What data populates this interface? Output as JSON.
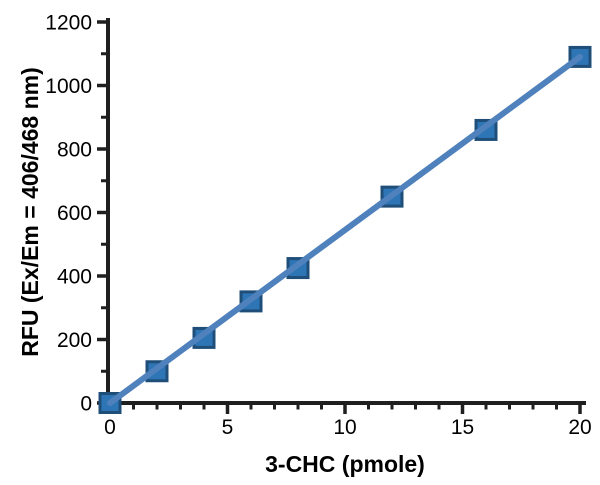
{
  "chart_data": {
    "type": "scatter",
    "title": "",
    "xlabel": "3-CHC (pmole)",
    "ylabel": "RFU (Ex/Em = 406/468 nm)",
    "series": [
      {
        "x": [
          0,
          2,
          4,
          6,
          8,
          12,
          16,
          20
        ],
        "y": [
          0,
          100,
          205,
          320,
          425,
          650,
          860,
          1090
        ],
        "marker": "square",
        "marker_fill": "#2e75b6",
        "marker_border": "#1f4e79",
        "line_color": "#4f81bd"
      }
    ],
    "trendline": {
      "x1": 0,
      "y1": 0,
      "x2": 20,
      "y2": 1090
    },
    "xlim": [
      0,
      20
    ],
    "ylim": [
      0,
      1200
    ],
    "x_major_ticks": [
      0,
      5,
      10,
      15,
      20
    ],
    "x_tick_labels": [
      "0",
      "5",
      "10",
      "15",
      "20"
    ],
    "x_minor_step": 1,
    "y_major_ticks": [
      0,
      200,
      400,
      600,
      800,
      1000,
      1200
    ],
    "y_tick_labels": [
      "0",
      "200",
      "400",
      "600",
      "800",
      "1000",
      "1200"
    ],
    "y_minor_step": 100,
    "grid": false,
    "legend": "none",
    "axis_color": "#1f1f1f",
    "text_color": "#000000",
    "background": "#ffffff"
  }
}
